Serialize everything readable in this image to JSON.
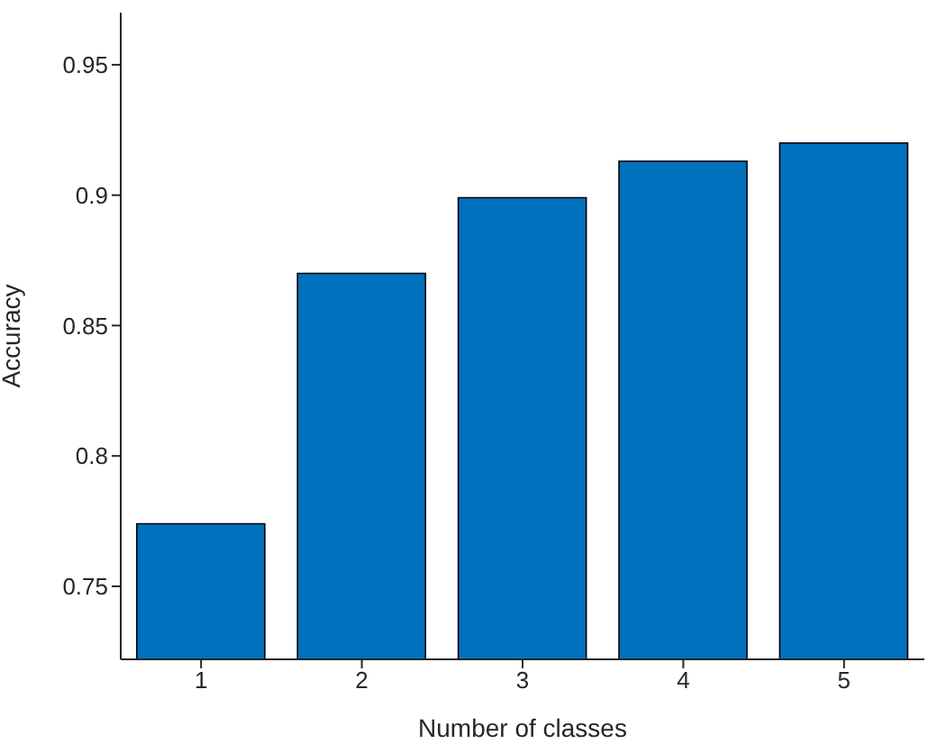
{
  "chart_data": {
    "type": "bar",
    "xlabel": "Number of classes",
    "ylabel": "Accuracy",
    "categories": [
      "1",
      "2",
      "3",
      "4",
      "5"
    ],
    "values": [
      0.774,
      0.87,
      0.899,
      0.913,
      0.92
    ],
    "color": "#0072bd",
    "ylim": [
      0.722,
      0.97
    ],
    "yticks": [
      0.75,
      0.8,
      0.85,
      0.9,
      0.95
    ],
    "grid": false,
    "legend": false
  }
}
